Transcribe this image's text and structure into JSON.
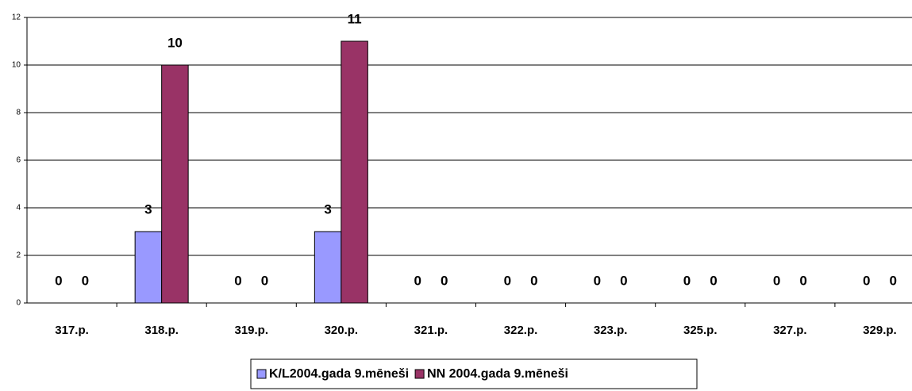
{
  "chart_data": {
    "type": "bar",
    "categories": [
      "317.p.",
      "318.p.",
      "319.p.",
      "320.p.",
      "321.p.",
      "322.p.",
      "323.p.",
      "325.p.",
      "327.p.",
      "329.p."
    ],
    "series": [
      {
        "name": "K/L2004.gada 9.mēneši",
        "color": "#9999ff",
        "values": [
          0,
          3,
          0,
          3,
          0,
          0,
          0,
          0,
          0,
          0
        ]
      },
      {
        "name": "NN 2004.gada 9.mēneši",
        "color": "#993366",
        "values": [
          0,
          10,
          0,
          11,
          0,
          0,
          0,
          0,
          0,
          0
        ]
      }
    ],
    "ylim": [
      0,
      12
    ],
    "yticks": [
      0,
      2,
      4,
      6,
      8,
      10,
      12
    ],
    "grid": true,
    "legend": "bottom"
  }
}
